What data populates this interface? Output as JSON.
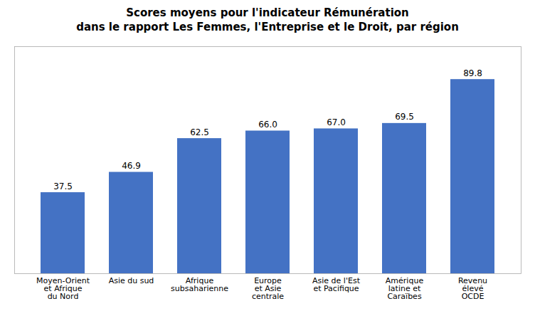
{
  "chart_data": {
    "type": "bar",
    "title": "Scores moyens pour l'indicateur Rémunération\ndans le rapport Les Femmes, l'Entreprise et le Droit, par région",
    "categories": [
      "Moyen-Orient\net Afrique\ndu Nord",
      "Asie du sud",
      "Afrique\nsubsaharienne",
      "Europe\net Asie\ncentrale",
      "Asie de l'Est\net Pacifique",
      "Amérique\nlatine et\nCaraïbes",
      "Revenu\nélevé\nOCDE"
    ],
    "values": [
      37.5,
      46.9,
      62.5,
      66.0,
      67.0,
      69.5,
      89.8
    ],
    "value_labels": [
      "37.5",
      "46.9",
      "62.5",
      "66.0",
      "67.0",
      "69.5",
      "89.8"
    ],
    "color": "#4472C4",
    "ylim": [
      0,
      105
    ],
    "grid": false,
    "data_labels": true,
    "tick_labels": "x"
  }
}
